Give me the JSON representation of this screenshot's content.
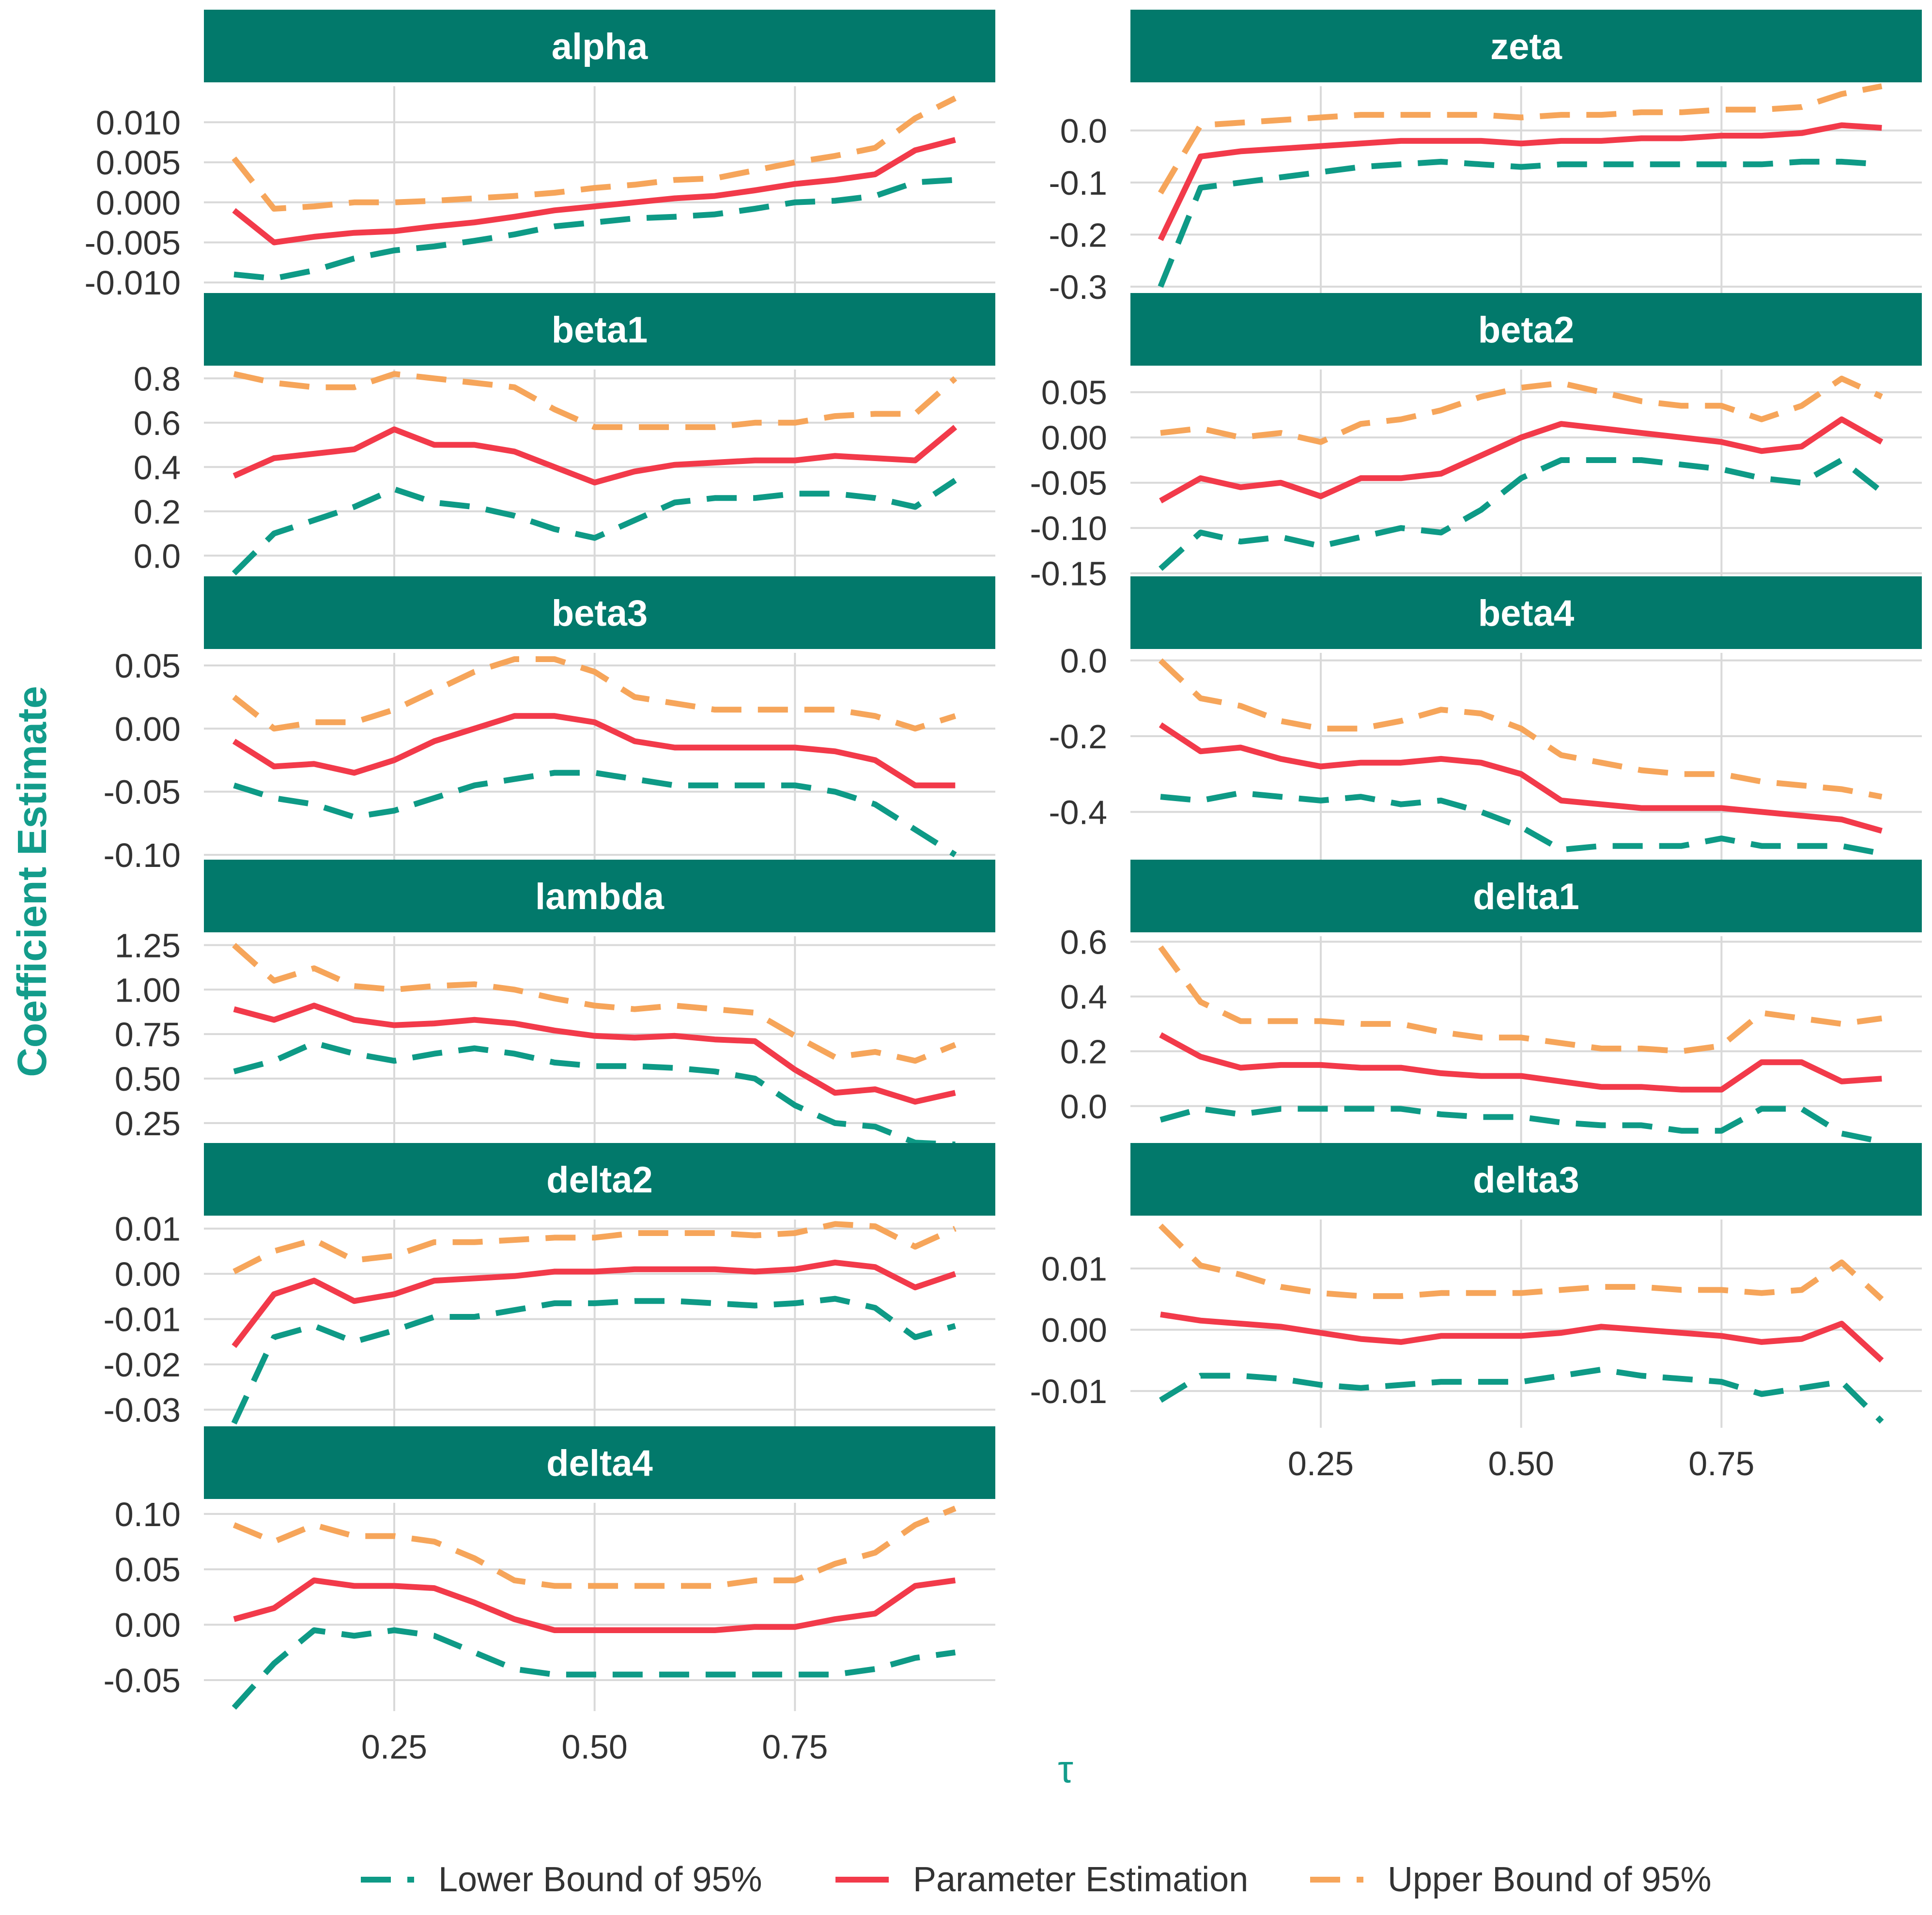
{
  "colors": {
    "strip_fill": "#02796B",
    "strip_text": "#ffffff",
    "lower": "#0E9A86",
    "estimate": "#F23A4A",
    "upper": "#F6A55A",
    "axis_title": "#139C8B",
    "tick_text": "#333333",
    "grid": "#D9D9D9"
  },
  "figure": {
    "ylabel": "Coefficient Estimate",
    "xlabel": "τ"
  },
  "legend": {
    "placement": "bottom",
    "items": [
      {
        "label": "Lower Bound of 95%",
        "key": "lower",
        "dash": true
      },
      {
        "label": "Parameter Estimation",
        "key": "estimate",
        "dash": false
      },
      {
        "label": "Upper Bound of 95%",
        "key": "upper",
        "dash": true
      }
    ]
  },
  "chart_data": {
    "type": "line",
    "layout": "facet-grid-2-columns",
    "x": [
      0.05,
      0.1,
      0.15,
      0.2,
      0.25,
      0.3,
      0.35,
      0.4,
      0.45,
      0.5,
      0.55,
      0.6,
      0.65,
      0.7,
      0.75,
      0.8,
      0.85,
      0.9,
      0.95
    ],
    "xlim": [
      0.0125,
      1.0
    ],
    "x_ticks": [
      0.25,
      0.5,
      0.75
    ],
    "x_tick_labels": [
      "0.25",
      "0.50",
      "0.75"
    ],
    "xlabel": "τ",
    "ylabel": "Coefficient Estimate",
    "grid": true,
    "series_names": [
      "Lower Bound of 95%",
      "Parameter Estimation",
      "Upper Bound of 95%"
    ],
    "panels": [
      {
        "title": "alpha",
        "ylim": [
          -0.0115,
          0.0145
        ],
        "y_ticks": [
          0.01,
          0.005,
          0.0,
          -0.005,
          -0.01
        ],
        "y_tick_labels": [
          "0.010",
          "0.005",
          "0.000",
          "-0.005",
          "-0.010"
        ],
        "lower": [
          -0.009,
          -0.0095,
          -0.0085,
          -0.007,
          -0.006,
          -0.0055,
          -0.0048,
          -0.004,
          -0.003,
          -0.0025,
          -0.002,
          -0.0018,
          -0.0015,
          -0.0008,
          0.0,
          0.0002,
          0.0008,
          0.0025,
          0.0028
        ],
        "estimate": [
          -0.001,
          -0.005,
          -0.0043,
          -0.0038,
          -0.0036,
          -0.003,
          -0.0025,
          -0.0018,
          -0.001,
          -0.0005,
          0.0,
          0.0005,
          0.0008,
          0.0015,
          0.0023,
          0.0028,
          0.0035,
          0.0065,
          0.0078
        ],
        "upper": [
          0.0055,
          -0.0008,
          -0.0005,
          0.0,
          0.0,
          0.0002,
          0.0005,
          0.0008,
          0.0012,
          0.0018,
          0.0022,
          0.0028,
          0.003,
          0.004,
          0.005,
          0.0058,
          0.0068,
          0.0105,
          0.013
        ]
      },
      {
        "title": "zeta",
        "ylim": [
          -0.315,
          0.085
        ],
        "y_ticks": [
          0.0,
          -0.1,
          -0.2,
          -0.3
        ],
        "y_tick_labels": [
          "0.0",
          "-0.1",
          "-0.2",
          "-0.3"
        ],
        "lower": [
          -0.3,
          -0.11,
          -0.1,
          -0.09,
          -0.08,
          -0.07,
          -0.065,
          -0.06,
          -0.065,
          -0.07,
          -0.065,
          -0.065,
          -0.065,
          -0.065,
          -0.065,
          -0.065,
          -0.06,
          -0.06,
          -0.065
        ],
        "estimate": [
          -0.21,
          -0.05,
          -0.04,
          -0.035,
          -0.03,
          -0.025,
          -0.02,
          -0.02,
          -0.02,
          -0.025,
          -0.02,
          -0.02,
          -0.015,
          -0.015,
          -0.01,
          -0.01,
          -0.005,
          0.01,
          0.005
        ],
        "upper": [
          -0.12,
          0.01,
          0.015,
          0.02,
          0.025,
          0.03,
          0.03,
          0.03,
          0.03,
          0.025,
          0.03,
          0.03,
          0.035,
          0.035,
          0.04,
          0.04,
          0.045,
          0.07,
          0.085
        ]
      },
      {
        "title": "beta1",
        "ylim": [
          -0.1,
          0.84
        ],
        "y_ticks": [
          0.8,
          0.6,
          0.4,
          0.2,
          0.0
        ],
        "y_tick_labels": [
          "0.8",
          "0.6",
          "0.4",
          "0.2",
          "0.0"
        ],
        "lower": [
          -0.08,
          0.1,
          0.16,
          0.22,
          0.3,
          0.24,
          0.22,
          0.18,
          0.12,
          0.08,
          0.16,
          0.24,
          0.26,
          0.26,
          0.28,
          0.28,
          0.26,
          0.22,
          0.34
        ],
        "estimate": [
          0.36,
          0.44,
          0.46,
          0.48,
          0.57,
          0.5,
          0.5,
          0.47,
          0.4,
          0.33,
          0.38,
          0.41,
          0.42,
          0.43,
          0.43,
          0.45,
          0.44,
          0.43,
          0.58
        ],
        "upper": [
          0.82,
          0.78,
          0.76,
          0.76,
          0.82,
          0.8,
          0.78,
          0.76,
          0.66,
          0.58,
          0.58,
          0.58,
          0.58,
          0.6,
          0.6,
          0.63,
          0.64,
          0.64,
          0.8
        ]
      },
      {
        "title": "beta2",
        "ylim": [
          -0.155,
          0.075
        ],
        "y_ticks": [
          0.05,
          0.0,
          -0.05,
          -0.1,
          -0.15
        ],
        "y_tick_labels": [
          "0.05",
          "0.00",
          "-0.05",
          "-0.10",
          "-0.15"
        ],
        "lower": [
          -0.145,
          -0.105,
          -0.115,
          -0.11,
          -0.12,
          -0.11,
          -0.1,
          -0.105,
          -0.08,
          -0.045,
          -0.025,
          -0.025,
          -0.025,
          -0.03,
          -0.035,
          -0.045,
          -0.05,
          -0.025,
          -0.06
        ],
        "estimate": [
          -0.07,
          -0.045,
          -0.055,
          -0.05,
          -0.065,
          -0.045,
          -0.045,
          -0.04,
          -0.02,
          0.0,
          0.015,
          0.01,
          0.005,
          0.0,
          -0.005,
          -0.015,
          -0.01,
          0.02,
          -0.005
        ],
        "upper": [
          0.005,
          0.01,
          0.0,
          0.005,
          -0.005,
          0.015,
          0.02,
          0.03,
          0.045,
          0.055,
          0.06,
          0.05,
          0.04,
          0.035,
          0.035,
          0.02,
          0.035,
          0.065,
          0.045
        ]
      },
      {
        "title": "beta3",
        "ylim": [
          -0.105,
          0.06
        ],
        "y_ticks": [
          0.05,
          0.0,
          -0.05,
          -0.1
        ],
        "y_tick_labels": [
          "0.05",
          "0.00",
          "-0.05",
          "-0.10"
        ],
        "lower": [
          -0.045,
          -0.055,
          -0.06,
          -0.07,
          -0.065,
          -0.055,
          -0.045,
          -0.04,
          -0.035,
          -0.035,
          -0.04,
          -0.045,
          -0.045,
          -0.045,
          -0.045,
          -0.05,
          -0.06,
          -0.08,
          -0.1
        ],
        "estimate": [
          -0.01,
          -0.03,
          -0.028,
          -0.035,
          -0.025,
          -0.01,
          0.0,
          0.01,
          0.01,
          0.005,
          -0.01,
          -0.015,
          -0.015,
          -0.015,
          -0.015,
          -0.018,
          -0.025,
          -0.045,
          -0.045
        ],
        "upper": [
          0.025,
          0.0,
          0.005,
          0.005,
          0.015,
          0.03,
          0.045,
          0.055,
          0.055,
          0.045,
          0.025,
          0.02,
          0.015,
          0.015,
          0.015,
          0.015,
          0.01,
          0.0,
          0.01
        ]
      },
      {
        "title": "beta4",
        "ylim": [
          -0.53,
          0.02
        ],
        "y_ticks": [
          0.0,
          -0.2,
          -0.4
        ],
        "y_tick_labels": [
          "0.0",
          "-0.2",
          "-0.4"
        ],
        "lower": [
          -0.36,
          -0.37,
          -0.35,
          -0.36,
          -0.37,
          -0.36,
          -0.38,
          -0.37,
          -0.4,
          -0.44,
          -0.5,
          -0.49,
          -0.49,
          -0.49,
          -0.47,
          -0.49,
          -0.49,
          -0.49,
          -0.51
        ],
        "estimate": [
          -0.17,
          -0.24,
          -0.23,
          -0.26,
          -0.28,
          -0.27,
          -0.27,
          -0.26,
          -0.27,
          -0.3,
          -0.37,
          -0.38,
          -0.39,
          -0.39,
          -0.39,
          -0.4,
          -0.41,
          -0.42,
          -0.45
        ],
        "upper": [
          0.0,
          -0.1,
          -0.12,
          -0.16,
          -0.18,
          -0.18,
          -0.16,
          -0.13,
          -0.14,
          -0.18,
          -0.25,
          -0.27,
          -0.29,
          -0.3,
          -0.3,
          -0.32,
          -0.33,
          -0.34,
          -0.36
        ]
      },
      {
        "title": "lambda",
        "ylim": [
          0.13,
          1.3
        ],
        "y_ticks": [
          1.25,
          1.0,
          0.75,
          0.5,
          0.25
        ],
        "y_tick_labels": [
          "1.25",
          "1.00",
          "0.75",
          "0.50",
          "0.25"
        ],
        "lower": [
          0.54,
          0.6,
          0.7,
          0.64,
          0.6,
          0.64,
          0.67,
          0.64,
          0.59,
          0.57,
          0.57,
          0.56,
          0.54,
          0.5,
          0.35,
          0.25,
          0.23,
          0.14,
          0.13
        ],
        "estimate": [
          0.89,
          0.83,
          0.91,
          0.83,
          0.8,
          0.81,
          0.83,
          0.81,
          0.77,
          0.74,
          0.73,
          0.74,
          0.72,
          0.71,
          0.55,
          0.42,
          0.44,
          0.37,
          0.42
        ],
        "upper": [
          1.25,
          1.05,
          1.12,
          1.02,
          1.0,
          1.02,
          1.03,
          1.0,
          0.95,
          0.91,
          0.89,
          0.91,
          0.89,
          0.87,
          0.74,
          0.62,
          0.65,
          0.6,
          0.69
        ]
      },
      {
        "title": "delta1",
        "ylim": [
          -0.14,
          0.62
        ],
        "y_ticks": [
          0.6,
          0.4,
          0.2,
          0.0
        ],
        "y_tick_labels": [
          "0.6",
          "0.4",
          "0.2",
          "0.0"
        ],
        "lower": [
          -0.05,
          -0.01,
          -0.03,
          -0.01,
          -0.01,
          -0.01,
          -0.01,
          -0.03,
          -0.04,
          -0.04,
          -0.06,
          -0.07,
          -0.07,
          -0.09,
          -0.09,
          -0.01,
          -0.01,
          -0.1,
          -0.13
        ],
        "estimate": [
          0.26,
          0.18,
          0.14,
          0.15,
          0.15,
          0.14,
          0.14,
          0.12,
          0.11,
          0.11,
          0.09,
          0.07,
          0.07,
          0.06,
          0.06,
          0.16,
          0.16,
          0.09,
          0.1
        ],
        "upper": [
          0.58,
          0.38,
          0.31,
          0.31,
          0.31,
          0.3,
          0.3,
          0.27,
          0.25,
          0.25,
          0.23,
          0.21,
          0.21,
          0.2,
          0.22,
          0.34,
          0.32,
          0.3,
          0.32
        ]
      },
      {
        "title": "delta2",
        "ylim": [
          -0.034,
          0.012
        ],
        "y_ticks": [
          0.01,
          0.0,
          -0.01,
          -0.02,
          -0.03
        ],
        "y_tick_labels": [
          "0.01",
          "0.00",
          "-0.01",
          "-0.02",
          "-0.03"
        ],
        "lower": [
          -0.033,
          -0.014,
          -0.0115,
          -0.015,
          -0.0125,
          -0.0095,
          -0.0095,
          -0.008,
          -0.0065,
          -0.0065,
          -0.006,
          -0.006,
          -0.0065,
          -0.007,
          -0.0065,
          -0.0055,
          -0.0075,
          -0.014,
          -0.0115
        ],
        "estimate": [
          -0.016,
          -0.0045,
          -0.0015,
          -0.006,
          -0.0045,
          -0.0015,
          -0.001,
          -0.0005,
          0.0005,
          0.0005,
          0.001,
          0.001,
          0.001,
          0.0005,
          0.001,
          0.0025,
          0.0015,
          -0.003,
          0.0
        ],
        "upper": [
          0.0005,
          0.005,
          0.0075,
          0.003,
          0.004,
          0.007,
          0.007,
          0.0075,
          0.008,
          0.008,
          0.009,
          0.009,
          0.009,
          0.0085,
          0.009,
          0.011,
          0.0105,
          0.006,
          0.01
        ]
      },
      {
        "title": "delta3",
        "ylim": [
          -0.016,
          0.018
        ],
        "y_ticks": [
          0.01,
          0.0,
          -0.01
        ],
        "y_tick_labels": [
          "0.01",
          "0.00",
          "-0.01"
        ],
        "lower": [
          -0.0115,
          -0.0075,
          -0.0075,
          -0.008,
          -0.009,
          -0.0095,
          -0.009,
          -0.0085,
          -0.0085,
          -0.0085,
          -0.0075,
          -0.0065,
          -0.0075,
          -0.008,
          -0.0085,
          -0.0105,
          -0.0095,
          -0.0085,
          -0.015
        ],
        "estimate": [
          0.0025,
          0.0015,
          0.001,
          0.0005,
          -0.0005,
          -0.0015,
          -0.002,
          -0.001,
          -0.001,
          -0.001,
          -0.0005,
          0.0005,
          0.0,
          -0.0005,
          -0.001,
          -0.002,
          -0.0015,
          0.001,
          -0.005
        ],
        "upper": [
          0.017,
          0.0105,
          0.009,
          0.007,
          0.006,
          0.0055,
          0.0055,
          0.006,
          0.006,
          0.006,
          0.0065,
          0.007,
          0.007,
          0.0065,
          0.0065,
          0.006,
          0.0065,
          0.011,
          0.005
        ]
      },
      {
        "title": "delta4",
        "ylim": [
          -0.078,
          0.11
        ],
        "y_ticks": [
          0.1,
          0.05,
          0.0,
          -0.05
        ],
        "y_tick_labels": [
          "0.10",
          "0.05",
          "0.00",
          "-0.05"
        ],
        "lower": [
          -0.075,
          -0.035,
          -0.005,
          -0.01,
          -0.005,
          -0.01,
          -0.025,
          -0.04,
          -0.045,
          -0.045,
          -0.045,
          -0.045,
          -0.045,
          -0.045,
          -0.045,
          -0.045,
          -0.04,
          -0.03,
          -0.025
        ],
        "estimate": [
          0.005,
          0.015,
          0.04,
          0.035,
          0.035,
          0.033,
          0.02,
          0.005,
          -0.005,
          -0.005,
          -0.005,
          -0.005,
          -0.005,
          -0.002,
          -0.002,
          0.005,
          0.01,
          0.035,
          0.04
        ],
        "upper": [
          0.09,
          0.075,
          0.09,
          0.08,
          0.08,
          0.075,
          0.06,
          0.04,
          0.035,
          0.035,
          0.035,
          0.035,
          0.035,
          0.04,
          0.04,
          0.055,
          0.065,
          0.09,
          0.105
        ]
      }
    ]
  }
}
